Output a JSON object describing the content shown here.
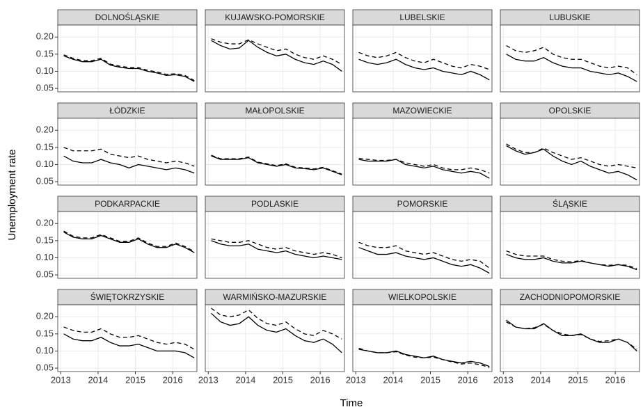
{
  "chart_data": {
    "type": "line",
    "x_label": "Time",
    "y_label": "Unemployment rate",
    "x": [
      2013.08,
      2013.33,
      2013.58,
      2013.83,
      2014.08,
      2014.33,
      2014.58,
      2014.83,
      2015.08,
      2015.33,
      2015.58,
      2015.83,
      2016.08,
      2016.33,
      2016.58
    ],
    "xlim": [
      2012.92,
      2016.65
    ],
    "xticks": [
      2013,
      2014,
      2015,
      2016
    ],
    "ylim": [
      0.04,
      0.235
    ],
    "yticks": [
      0.05,
      {
        "value": 0.1,
        "label": "0.10"
      },
      0.15,
      {
        "value": 0.2,
        "label": "0.20"
      }
    ],
    "grid": true,
    "panels": [
      {
        "title": "DOLNOŚLĄSKIE",
        "series": [
          {
            "color": "#000000",
            "line_style": "solid",
            "values": [
              0.145,
              0.135,
              0.128,
              0.128,
              0.135,
              0.118,
              0.112,
              0.108,
              0.108,
              0.1,
              0.095,
              0.088,
              0.09,
              0.085,
              0.07
            ]
          },
          {
            "color": "#000000",
            "line_style": "dashed",
            "values": [
              0.148,
              0.138,
              0.131,
              0.131,
              0.138,
              0.121,
              0.115,
              0.111,
              0.111,
              0.103,
              0.098,
              0.091,
              0.093,
              0.088,
              0.073
            ]
          }
        ]
      },
      {
        "title": "KUJAWSKO-POMORSKIE",
        "series": [
          {
            "color": "#000000",
            "line_style": "solid",
            "values": [
              0.19,
              0.175,
              0.165,
              0.168,
              0.19,
              0.17,
              0.155,
              0.145,
              0.15,
              0.135,
              0.125,
              0.12,
              0.13,
              0.12,
              0.1
            ]
          },
          {
            "color": "#000000",
            "line_style": "dashed",
            "values": [
              0.195,
              0.185,
              0.18,
              0.18,
              0.192,
              0.18,
              0.17,
              0.16,
              0.165,
              0.15,
              0.14,
              0.135,
              0.145,
              0.135,
              0.12
            ]
          }
        ]
      },
      {
        "title": "LUBELSKIE",
        "series": [
          {
            "color": "#000000",
            "line_style": "solid",
            "values": [
              0.135,
              0.125,
              0.12,
              0.125,
              0.135,
              0.12,
              0.11,
              0.105,
              0.11,
              0.1,
              0.095,
              0.09,
              0.1,
              0.09,
              0.075
            ]
          },
          {
            "color": "#000000",
            "line_style": "dashed",
            "values": [
              0.155,
              0.145,
              0.14,
              0.145,
              0.155,
              0.14,
              0.13,
              0.125,
              0.135,
              0.125,
              0.115,
              0.11,
              0.12,
              0.115,
              0.105
            ]
          }
        ]
      },
      {
        "title": "LUBUSKIE",
        "series": [
          {
            "color": "#000000",
            "line_style": "solid",
            "values": [
              0.15,
              0.135,
              0.13,
              0.13,
              0.14,
              0.125,
              0.115,
              0.11,
              0.11,
              0.1,
              0.095,
              0.09,
              0.095,
              0.085,
              0.07
            ]
          },
          {
            "color": "#000000",
            "line_style": "dashed",
            "values": [
              0.175,
              0.16,
              0.155,
              0.16,
              0.17,
              0.15,
              0.14,
              0.135,
              0.135,
              0.125,
              0.115,
              0.11,
              0.115,
              0.11,
              0.09
            ]
          }
        ]
      },
      {
        "title": "ŁÓDZKIE",
        "series": [
          {
            "color": "#000000",
            "line_style": "solid",
            "values": [
              0.125,
              0.11,
              0.105,
              0.105,
              0.115,
              0.105,
              0.1,
              0.09,
              0.1,
              0.095,
              0.09,
              0.085,
              0.09,
              0.085,
              0.075
            ]
          },
          {
            "color": "#000000",
            "line_style": "dashed",
            "values": [
              0.15,
              0.14,
              0.14,
              0.14,
              0.145,
              0.13,
              0.125,
              0.12,
              0.125,
              0.115,
              0.11,
              0.105,
              0.11,
              0.105,
              0.095
            ]
          }
        ]
      },
      {
        "title": "MAŁOPOLSKIE",
        "series": [
          {
            "color": "#000000",
            "line_style": "solid",
            "values": [
              0.125,
              0.115,
              0.115,
              0.115,
              0.12,
              0.105,
              0.1,
              0.095,
              0.1,
              0.09,
              0.088,
              0.085,
              0.09,
              0.08,
              0.07
            ]
          },
          {
            "color": "#000000",
            "line_style": "dashed",
            "values": [
              0.127,
              0.117,
              0.117,
              0.117,
              0.122,
              0.107,
              0.102,
              0.097,
              0.102,
              0.092,
              0.09,
              0.087,
              0.092,
              0.082,
              0.072
            ]
          }
        ]
      },
      {
        "title": "MAZOWIECKIE",
        "series": [
          {
            "color": "#000000",
            "line_style": "solid",
            "values": [
              0.115,
              0.11,
              0.11,
              0.11,
              0.115,
              0.1,
              0.095,
              0.09,
              0.095,
              0.085,
              0.08,
              0.075,
              0.08,
              0.075,
              0.06
            ]
          },
          {
            "color": "#000000",
            "line_style": "dashed",
            "values": [
              0.118,
              0.115,
              0.112,
              0.112,
              0.115,
              0.105,
              0.1,
              0.095,
              0.1,
              0.09,
              0.085,
              0.085,
              0.09,
              0.085,
              0.075
            ]
          }
        ]
      },
      {
        "title": "OPOLSKIE",
        "series": [
          {
            "color": "#000000",
            "line_style": "solid",
            "values": [
              0.155,
              0.14,
              0.13,
              0.135,
              0.145,
              0.125,
              0.11,
              0.1,
              0.11,
              0.095,
              0.085,
              0.075,
              0.08,
              0.07,
              0.055
            ]
          },
          {
            "color": "#000000",
            "line_style": "dashed",
            "values": [
              0.16,
              0.145,
              0.135,
              0.135,
              0.148,
              0.135,
              0.125,
              0.115,
              0.12,
              0.11,
              0.1,
              0.095,
              0.1,
              0.095,
              0.09
            ]
          }
        ]
      },
      {
        "title": "PODKARPACKIE",
        "series": [
          {
            "color": "#000000",
            "line_style": "solid",
            "values": [
              0.175,
              0.16,
              0.155,
              0.155,
              0.165,
              0.155,
              0.145,
              0.145,
              0.155,
              0.14,
              0.13,
              0.13,
              0.14,
              0.13,
              0.115
            ]
          },
          {
            "color": "#000000",
            "line_style": "dashed",
            "values": [
              0.178,
              0.163,
              0.158,
              0.158,
              0.168,
              0.158,
              0.148,
              0.148,
              0.158,
              0.143,
              0.133,
              0.133,
              0.143,
              0.133,
              0.118
            ]
          }
        ]
      },
      {
        "title": "PODLASKIE",
        "series": [
          {
            "color": "#000000",
            "line_style": "solid",
            "values": [
              0.15,
              0.14,
              0.135,
              0.135,
              0.14,
              0.125,
              0.12,
              0.115,
              0.12,
              0.11,
              0.105,
              0.1,
              0.105,
              0.1,
              0.095
            ]
          },
          {
            "color": "#000000",
            "line_style": "dashed",
            "values": [
              0.155,
              0.15,
              0.145,
              0.145,
              0.15,
              0.14,
              0.13,
              0.125,
              0.13,
              0.12,
              0.115,
              0.11,
              0.115,
              0.11,
              0.1
            ]
          }
        ]
      },
      {
        "title": "POMORSKIE",
        "series": [
          {
            "color": "#000000",
            "line_style": "solid",
            "values": [
              0.13,
              0.12,
              0.11,
              0.11,
              0.115,
              0.105,
              0.1,
              0.095,
              0.1,
              0.09,
              0.08,
              0.075,
              0.08,
              0.07,
              0.055
            ]
          },
          {
            "color": "#000000",
            "line_style": "dashed",
            "values": [
              0.145,
              0.135,
              0.13,
              0.13,
              0.135,
              0.12,
              0.115,
              0.11,
              0.115,
              0.105,
              0.095,
              0.09,
              0.095,
              0.09,
              0.07
            ]
          }
        ]
      },
      {
        "title": "ŚLĄSKIE",
        "series": [
          {
            "color": "#000000",
            "line_style": "solid",
            "values": [
              0.11,
              0.1,
              0.095,
              0.095,
              0.1,
              0.09,
              0.085,
              0.085,
              0.09,
              0.085,
              0.08,
              0.075,
              0.08,
              0.075,
              0.065
            ]
          },
          {
            "color": "#000000",
            "line_style": "dashed",
            "values": [
              0.12,
              0.11,
              0.105,
              0.105,
              0.105,
              0.095,
              0.09,
              0.088,
              0.092,
              0.085,
              0.08,
              0.078,
              0.08,
              0.078,
              0.068
            ]
          }
        ]
      },
      {
        "title": "ŚWIĘTOKRZYSKIE",
        "series": [
          {
            "color": "#000000",
            "line_style": "solid",
            "values": [
              0.15,
              0.135,
              0.13,
              0.13,
              0.14,
              0.125,
              0.115,
              0.115,
              0.12,
              0.11,
              0.1,
              0.1,
              0.1,
              0.095,
              0.08
            ]
          },
          {
            "color": "#000000",
            "line_style": "dashed",
            "values": [
              0.17,
              0.16,
              0.155,
              0.155,
              0.165,
              0.15,
              0.14,
              0.14,
              0.145,
              0.135,
              0.125,
              0.12,
              0.125,
              0.12,
              0.105
            ]
          }
        ]
      },
      {
        "title": "WARMIŃSKO-MAZURSKIE",
        "series": [
          {
            "color": "#000000",
            "line_style": "solid",
            "values": [
              0.21,
              0.185,
              0.175,
              0.18,
              0.2,
              0.175,
              0.16,
              0.155,
              0.165,
              0.145,
              0.13,
              0.125,
              0.135,
              0.12,
              0.095
            ]
          },
          {
            "color": "#000000",
            "line_style": "dashed",
            "values": [
              0.225,
              0.205,
              0.2,
              0.205,
              0.22,
              0.195,
              0.18,
              0.175,
              0.185,
              0.165,
              0.15,
              0.145,
              0.16,
              0.15,
              0.135
            ]
          }
        ]
      },
      {
        "title": "WIELKOPOLSKIE",
        "series": [
          {
            "color": "#000000",
            "line_style": "solid",
            "values": [
              0.105,
              0.1,
              0.095,
              0.095,
              0.1,
              0.09,
              0.085,
              0.08,
              0.085,
              0.075,
              0.07,
              0.065,
              0.07,
              0.065,
              0.055
            ]
          },
          {
            "color": "#000000",
            "line_style": "dashed",
            "values": [
              0.108,
              0.1,
              0.095,
              0.095,
              0.098,
              0.088,
              0.082,
              0.08,
              0.082,
              0.075,
              0.068,
              0.062,
              0.065,
              0.06,
              0.052
            ]
          }
        ]
      },
      {
        "title": "ZACHODNIOPOMORSKIE",
        "series": [
          {
            "color": "#000000",
            "line_style": "solid",
            "values": [
              0.19,
              0.17,
              0.165,
              0.165,
              0.18,
              0.16,
              0.145,
              0.145,
              0.15,
              0.135,
              0.125,
              0.125,
              0.135,
              0.125,
              0.1
            ]
          },
          {
            "color": "#000000",
            "line_style": "dashed",
            "values": [
              0.185,
              0.17,
              0.165,
              0.168,
              0.178,
              0.16,
              0.15,
              0.145,
              0.148,
              0.135,
              0.128,
              0.13,
              0.135,
              0.125,
              0.105
            ]
          }
        ]
      }
    ]
  }
}
